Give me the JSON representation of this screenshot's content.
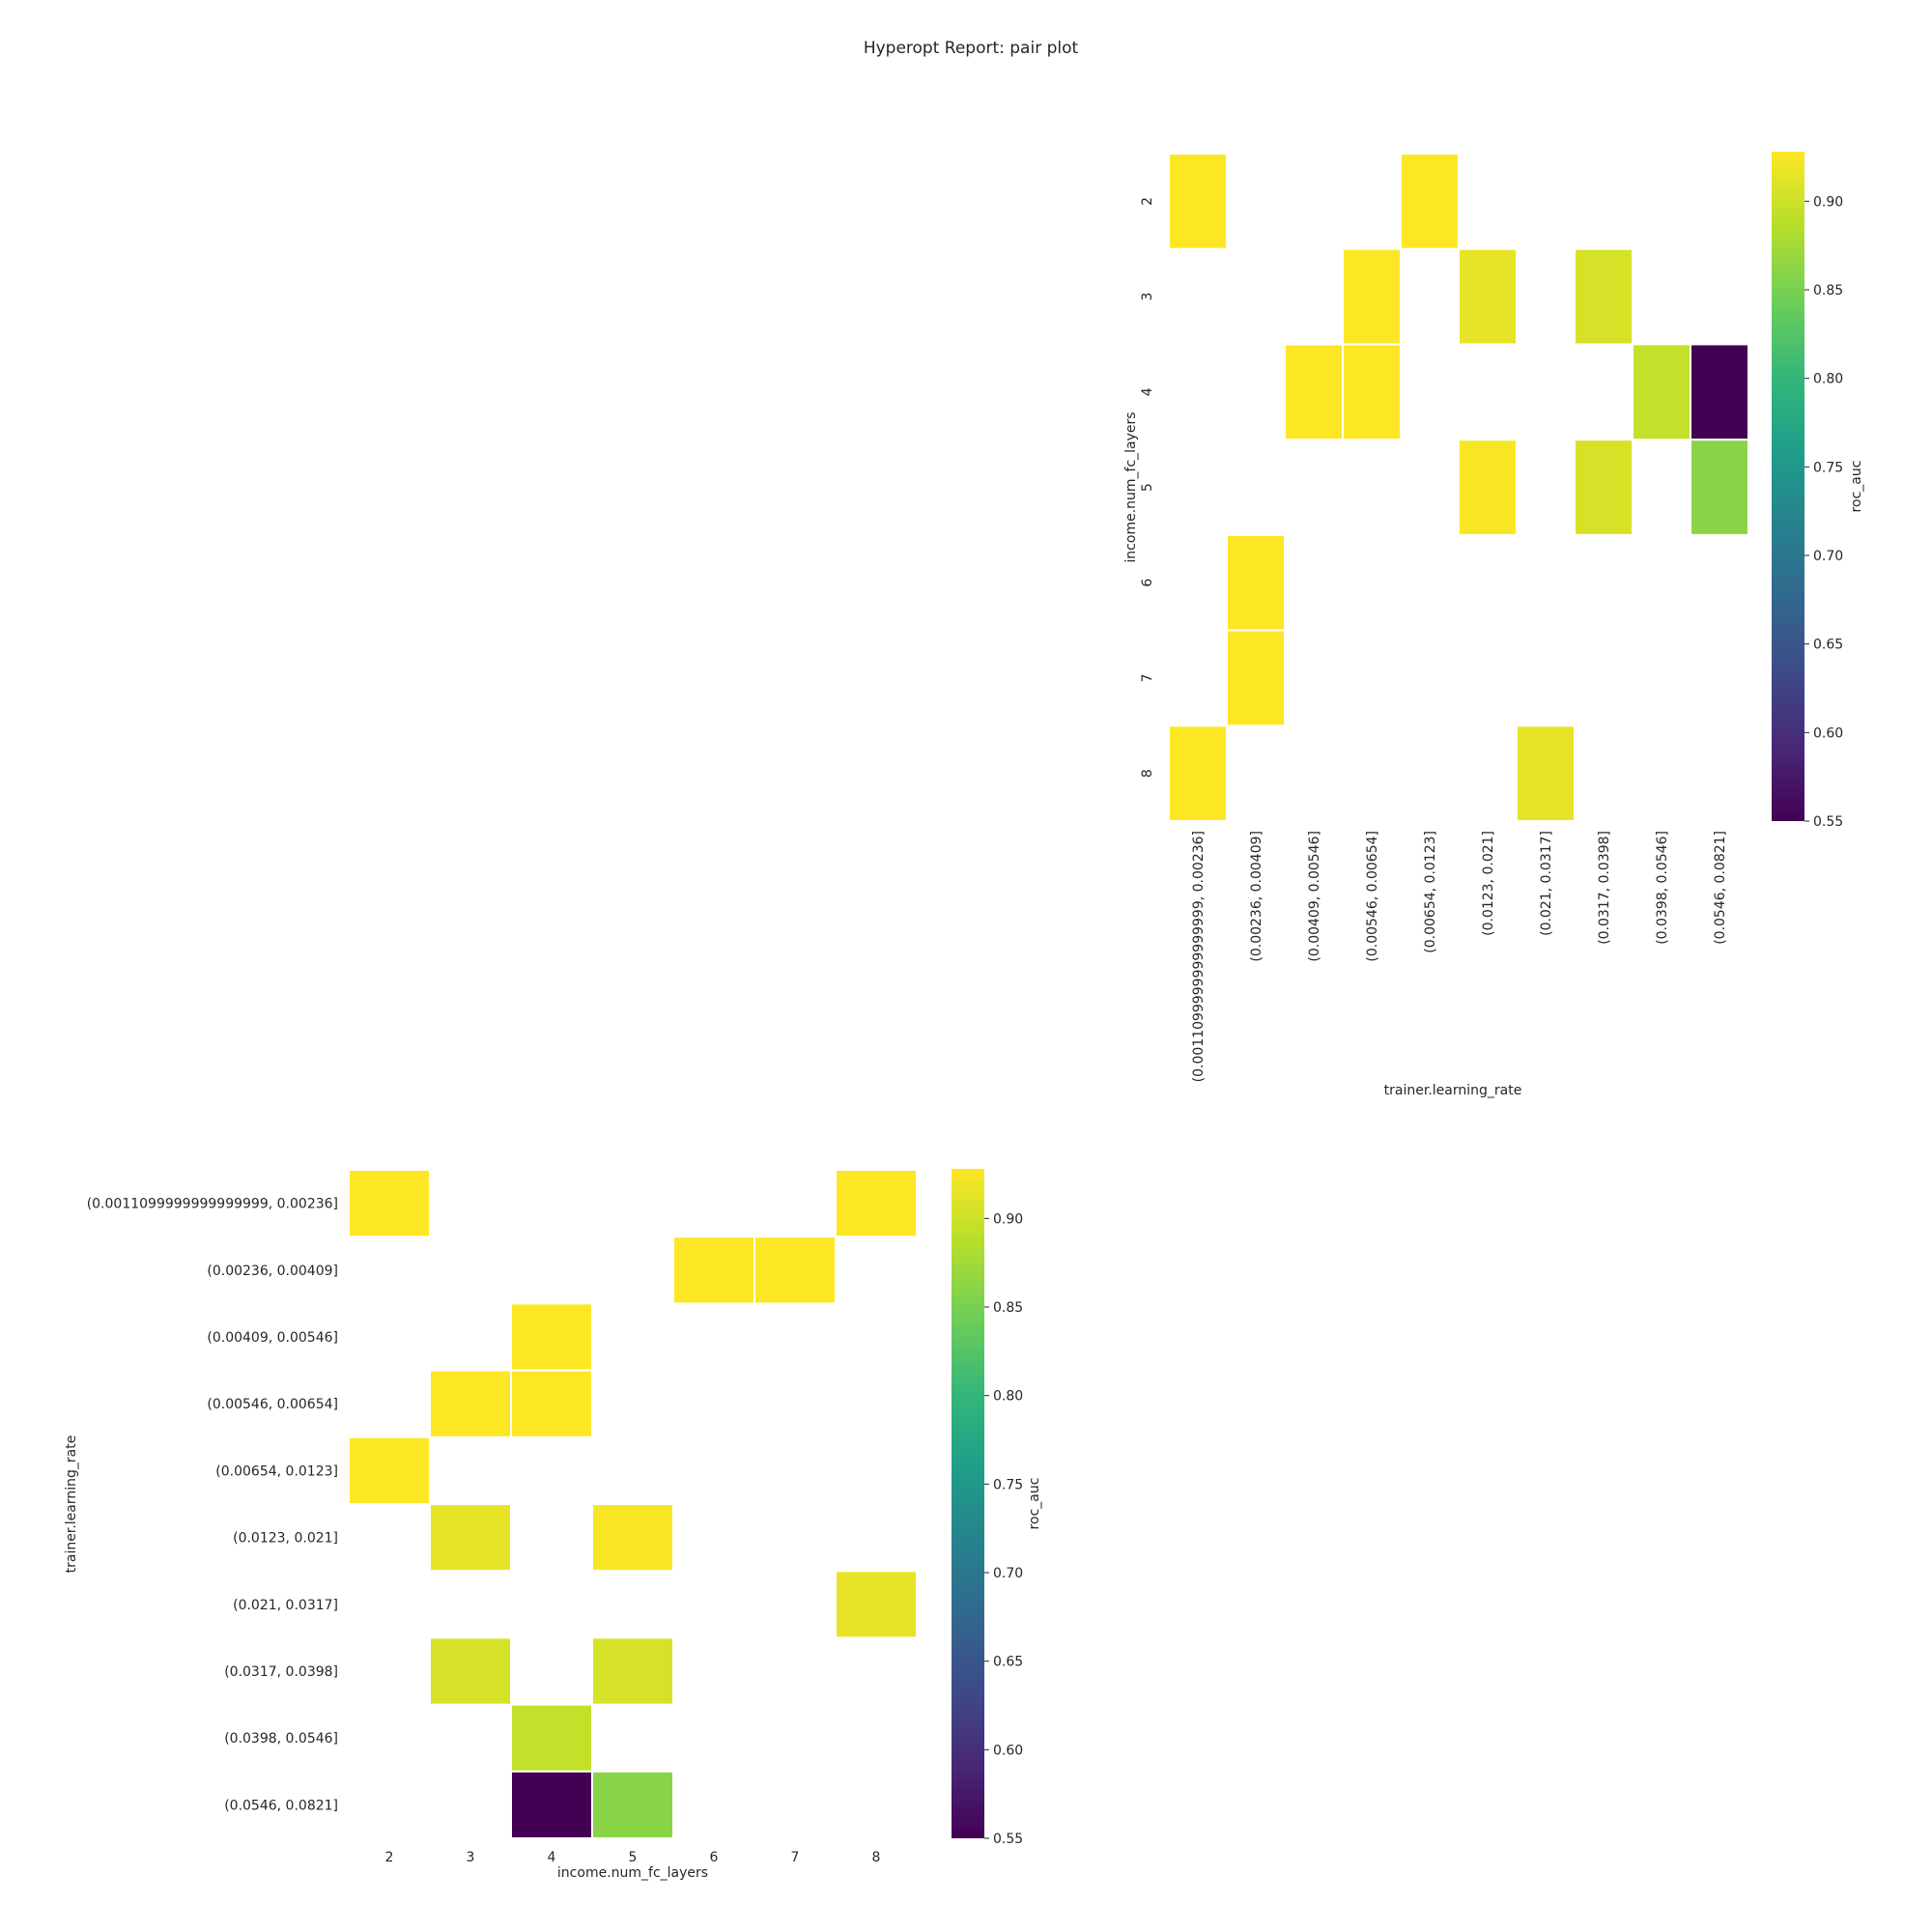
{
  "figure": {
    "title": "Hyperopt Report: pair plot"
  },
  "colormap": {
    "name": "viridis",
    "stops": [
      "#440154",
      "#482878",
      "#3e4a89",
      "#31688e",
      "#26828e",
      "#1f9e89",
      "#35b779",
      "#6ece58",
      "#b5de2b",
      "#fde725"
    ]
  },
  "chart_data": [
    {
      "type": "heatmap",
      "title": "",
      "xlabel": "trainer.learning_rate",
      "ylabel": "income.num_fc_layers",
      "x_categories": [
        "(0.0011099999999999999, 0.00236]",
        "(0.00236, 0.00409]",
        "(0.00409, 0.00546]",
        "(0.00546, 0.00654]",
        "(0.00654, 0.0123]",
        "(0.0123, 0.021]",
        "(0.021, 0.0317]",
        "(0.0317, 0.0398]",
        "(0.0398, 0.0546]",
        "(0.0546, 0.0821]"
      ],
      "y_categories": [
        "2",
        "3",
        "4",
        "5",
        "6",
        "7",
        "8"
      ],
      "values": [
        [
          0.928,
          null,
          null,
          null,
          0.928,
          null,
          null,
          null,
          null,
          null
        ],
        [
          null,
          null,
          null,
          0.928,
          null,
          0.915,
          null,
          0.905,
          null,
          null
        ],
        [
          null,
          null,
          0.928,
          0.928,
          null,
          null,
          null,
          null,
          0.895,
          0.55
        ],
        [
          null,
          null,
          null,
          null,
          null,
          0.925,
          null,
          0.905,
          null,
          0.86
        ],
        [
          null,
          0.928,
          null,
          null,
          null,
          null,
          null,
          null,
          null,
          null
        ],
        [
          null,
          0.928,
          null,
          null,
          null,
          null,
          null,
          null,
          null,
          null
        ],
        [
          0.928,
          null,
          null,
          null,
          null,
          null,
          0.915,
          null,
          null,
          null
        ]
      ],
      "colorbar": {
        "label": "roc_auc",
        "vmin": 0.55,
        "vmax": 0.928,
        "ticks": [
          "0.55",
          "0.60",
          "0.65",
          "0.70",
          "0.75",
          "0.80",
          "0.85",
          "0.90"
        ]
      }
    },
    {
      "type": "heatmap",
      "title": "",
      "xlabel": "income.num_fc_layers",
      "ylabel": "trainer.learning_rate",
      "x_categories": [
        "2",
        "3",
        "4",
        "5",
        "6",
        "7",
        "8"
      ],
      "y_categories": [
        "(0.0011099999999999999, 0.00236]",
        "(0.00236, 0.00409]",
        "(0.00409, 0.00546]",
        "(0.00546, 0.00654]",
        "(0.00654, 0.0123]",
        "(0.0123, 0.021]",
        "(0.021, 0.0317]",
        "(0.0317, 0.0398]",
        "(0.0398, 0.0546]",
        "(0.0546, 0.0821]"
      ],
      "values": [
        [
          0.928,
          null,
          null,
          null,
          null,
          null,
          0.928
        ],
        [
          null,
          null,
          null,
          null,
          0.928,
          0.928,
          null
        ],
        [
          null,
          null,
          0.928,
          null,
          null,
          null,
          null
        ],
        [
          null,
          0.928,
          0.928,
          null,
          null,
          null,
          null
        ],
        [
          0.928,
          null,
          null,
          null,
          null,
          null,
          null
        ],
        [
          null,
          0.915,
          null,
          0.925,
          null,
          null,
          null
        ],
        [
          null,
          null,
          null,
          null,
          null,
          null,
          0.915
        ],
        [
          null,
          0.905,
          null,
          0.905,
          null,
          null,
          null
        ],
        [
          null,
          null,
          0.895,
          null,
          null,
          null,
          null
        ],
        [
          null,
          null,
          0.55,
          0.86,
          null,
          null,
          null
        ]
      ],
      "colorbar": {
        "label": "roc_auc",
        "vmin": 0.55,
        "vmax": 0.928,
        "ticks": [
          "0.55",
          "0.60",
          "0.65",
          "0.70",
          "0.75",
          "0.80",
          "0.85",
          "0.90"
        ]
      }
    }
  ]
}
